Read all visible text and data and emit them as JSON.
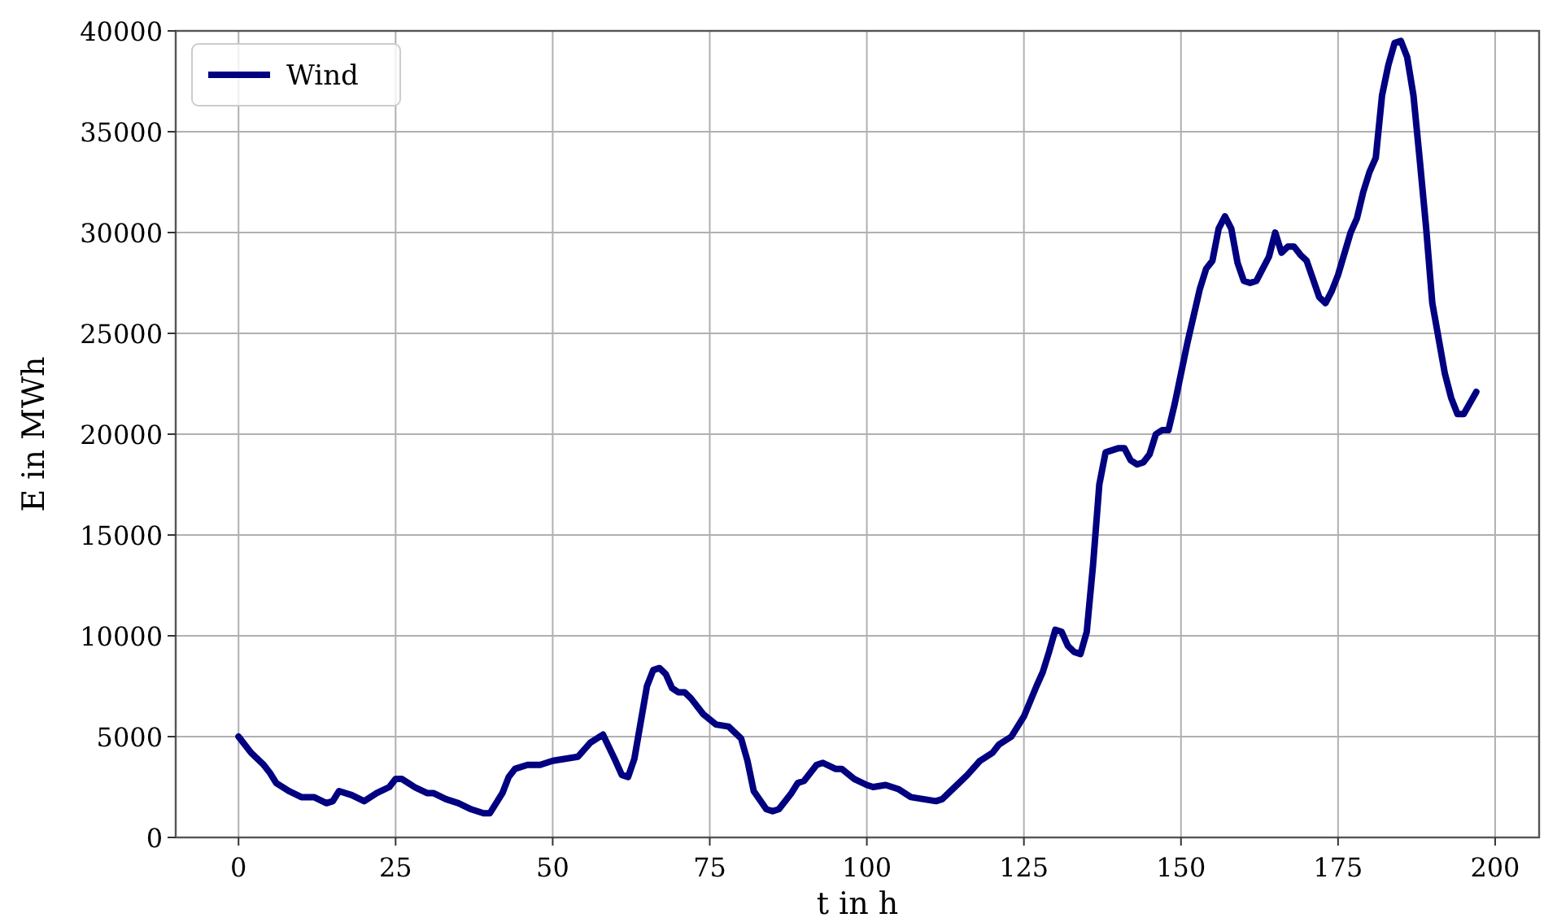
{
  "chart_data": {
    "type": "line",
    "xlabel": "t in h",
    "ylabel": "E in MWh",
    "xlim": [
      -10,
      207
    ],
    "ylim": [
      0,
      40000
    ],
    "xticks": [
      0,
      25,
      50,
      75,
      100,
      125,
      150,
      175,
      200
    ],
    "yticks": [
      0,
      5000,
      10000,
      15000,
      20000,
      25000,
      30000,
      35000,
      40000
    ],
    "grid": true,
    "legend": "top left",
    "line_style": "solid",
    "marker": "none",
    "series": [
      {
        "name": "Wind",
        "color": "#000080",
        "x": [
          0,
          2,
          4,
          5,
          6,
          8,
          10,
          11,
          12,
          14,
          15,
          16,
          18,
          20,
          22,
          24,
          25,
          26,
          28,
          30,
          31,
          33,
          35,
          37,
          39,
          40,
          42,
          43,
          44,
          46,
          48,
          50,
          52,
          54,
          56,
          58,
          60,
          61,
          62,
          63,
          65,
          66,
          67,
          68,
          69,
          70,
          71,
          72,
          74,
          76,
          78,
          80,
          81,
          82,
          84,
          85,
          86,
          88,
          89,
          90,
          92,
          93,
          95,
          96,
          98,
          100,
          101,
          103,
          105,
          107,
          109,
          111,
          112,
          114,
          116,
          118,
          120,
          121,
          123,
          125,
          127,
          128,
          129,
          130,
          131,
          132,
          133,
          134,
          135,
          136,
          137,
          138,
          140,
          141,
          142,
          143,
          144,
          145,
          146,
          147,
          148,
          149,
          151,
          153,
          154,
          155,
          156,
          157,
          158,
          159,
          160,
          161,
          162,
          163,
          164,
          165,
          166,
          167,
          168,
          169,
          170,
          171,
          172,
          173,
          174,
          175,
          177,
          178,
          179,
          180,
          181,
          182,
          183,
          184,
          185,
          186,
          187,
          188,
          189,
          190,
          192,
          193,
          194,
          195,
          197
        ],
        "values": [
          5000,
          4200,
          3600,
          3200,
          2700,
          2300,
          2000,
          2000,
          2000,
          1700,
          1800,
          2300,
          2100,
          1800,
          2200,
          2500,
          2900,
          2900,
          2500,
          2200,
          2200,
          1900,
          1700,
          1400,
          1200,
          1200,
          2200,
          3000,
          3400,
          3600,
          3600,
          3800,
          3900,
          4000,
          4700,
          5100,
          3800,
          3100,
          3000,
          3900,
          7500,
          8300,
          8400,
          8100,
          7400,
          7200,
          7200,
          6900,
          6100,
          5600,
          5500,
          4900,
          3800,
          2300,
          1400,
          1300,
          1400,
          2200,
          2700,
          2800,
          3600,
          3700,
          3400,
          3400,
          2900,
          2600,
          2500,
          2600,
          2400,
          2000,
          1900,
          1800,
          1900,
          2500,
          3100,
          3800,
          4200,
          4600,
          5000,
          6000,
          7500,
          8200,
          9200,
          10300,
          10200,
          9500,
          9200,
          9100,
          10200,
          13500,
          17500,
          19100,
          19300,
          19300,
          18700,
          18500,
          18600,
          19000,
          20000,
          20200,
          20200,
          21500,
          24500,
          27200,
          28200,
          28600,
          30200,
          30800,
          30200,
          28500,
          27600,
          27500,
          27600,
          28200,
          28800,
          30000,
          29000,
          29300,
          29300,
          28900,
          28600,
          27700,
          26800,
          26500,
          27100,
          27900,
          30000,
          30700,
          32000,
          33000,
          33700,
          36800,
          38300,
          39400,
          39500,
          38700,
          36800,
          33600,
          30300,
          26500,
          23000,
          21800,
          21000,
          21000,
          22100
        ]
      }
    ]
  }
}
